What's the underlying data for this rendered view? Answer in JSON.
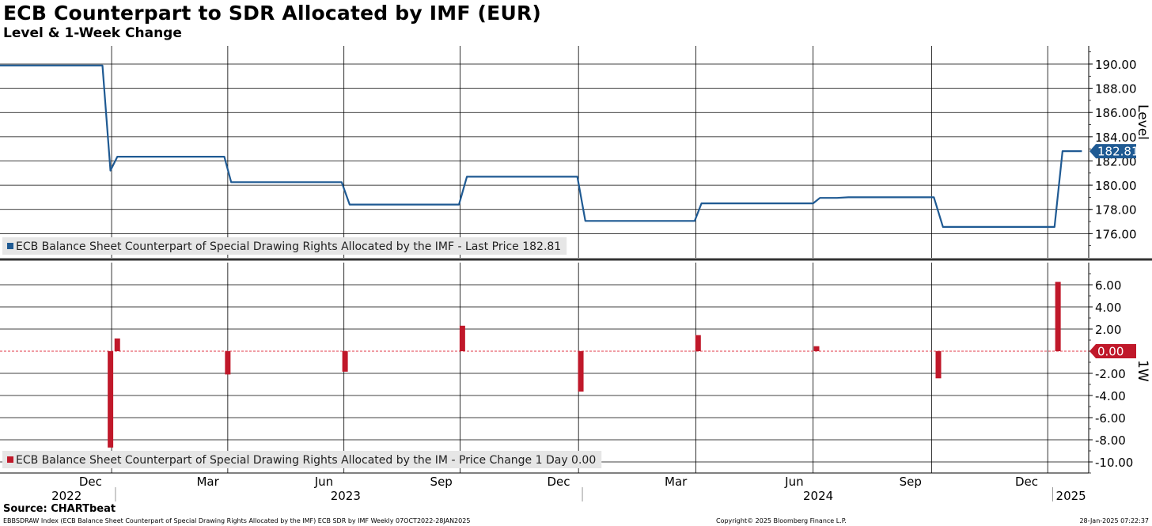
{
  "chart_data": {
    "type": "line",
    "title": "ECB Counterpart to SDR Allocated by IMF (EUR)",
    "subtitle": "Level & 1-Week Change",
    "upper_panel": {
      "type": "line",
      "axis_label": "Level",
      "ylim": [
        174.0,
        191.5
      ],
      "y_ticks": [
        "190.00",
        "188.00",
        "186.00",
        "184.00",
        "182.00",
        "180.00",
        "178.00",
        "176.00"
      ],
      "y_tick_values": [
        190,
        188,
        186,
        184,
        182,
        180,
        178,
        176
      ],
      "legend": "ECB Balance Sheet Counterpart of Special Drawing Rights Allocated by the IMF - Last Price 182.81",
      "last_value_label": "182.81",
      "last_value": 182.81,
      "color": "#1f5a93",
      "series_name": "ECB Balance Sheet Counterpart of Special Drawing Rights Allocated by the IMF",
      "points": [
        {
          "t": 0.0,
          "v": 189.88
        },
        {
          "t": 9.0,
          "v": 189.88
        },
        {
          "t": 9.7,
          "v": 181.2
        },
        {
          "t": 10.3,
          "v": 182.35
        },
        {
          "t": 19.7,
          "v": 182.35
        },
        {
          "t": 20.3,
          "v": 180.25
        },
        {
          "t": 30.0,
          "v": 180.25
        },
        {
          "t": 30.7,
          "v": 178.4
        },
        {
          "t": 40.3,
          "v": 178.4
        },
        {
          "t": 41.0,
          "v": 180.7
        },
        {
          "t": 50.7,
          "v": 180.7
        },
        {
          "t": 51.4,
          "v": 177.05
        },
        {
          "t": 61.0,
          "v": 177.05
        },
        {
          "t": 61.6,
          "v": 178.5
        },
        {
          "t": 71.4,
          "v": 178.5
        },
        {
          "t": 72.0,
          "v": 178.95
        },
        {
          "t": 73.5,
          "v": 178.95
        },
        {
          "t": 74.5,
          "v": 179.0
        },
        {
          "t": 82.0,
          "v": 179.0
        },
        {
          "t": 82.8,
          "v": 176.55
        },
        {
          "t": 92.6,
          "v": 176.55
        },
        {
          "t": 93.3,
          "v": 182.81
        },
        {
          "t": 95.0,
          "v": 182.81
        }
      ]
    },
    "lower_panel": {
      "type": "bar",
      "axis_label": "1W",
      "ylim": [
        -11.0,
        8.0
      ],
      "y_ticks": [
        "6.00",
        "4.00",
        "2.00",
        "0.00",
        "-2.00",
        "-4.00",
        "-6.00",
        "-8.00",
        "-10.00"
      ],
      "y_tick_values": [
        6,
        4,
        2,
        0,
        -2,
        -4,
        -6,
        -8,
        -10
      ],
      "legend": "ECB Balance Sheet Counterpart of Special Drawing Rights Allocated by the IM - Price Change 1 Day 0.00",
      "last_value_label": "0.00",
      "last_value": 0.0,
      "color": "#c0182a",
      "series_name": "ECB Balance Sheet Counterpart of Special Drawing Rights Allocated by the IM - Price Change 1 Day",
      "bars": [
        {
          "t": 9.7,
          "v": -8.7
        },
        {
          "t": 10.3,
          "v": 1.15
        },
        {
          "t": 20.0,
          "v": -2.1
        },
        {
          "t": 30.3,
          "v": -1.85
        },
        {
          "t": 40.6,
          "v": 2.3
        },
        {
          "t": 51.0,
          "v": -3.65
        },
        {
          "t": 61.3,
          "v": 1.45
        },
        {
          "t": 71.7,
          "v": 0.45
        },
        {
          "t": 82.4,
          "v": -2.45
        },
        {
          "t": 92.9,
          "v": 6.26
        }
      ]
    },
    "x_axis": {
      "unit": "weeks since 07 Oct 2022",
      "month_ticks": [
        {
          "label": "Dec",
          "t": 7.6
        },
        {
          "label": "Mar",
          "t": 17.9
        },
        {
          "label": "Jun",
          "t": 28.1
        },
        {
          "label": "Sep",
          "t": 38.4
        },
        {
          "label": "Dec",
          "t": 48.7
        },
        {
          "label": "Mar",
          "t": 59.0
        },
        {
          "label": "Jun",
          "t": 69.4
        },
        {
          "label": "Sep",
          "t": 79.6
        },
        {
          "label": "Dec",
          "t": 89.8
        }
      ],
      "gridlines_t": [
        9.8,
        20.0,
        30.2,
        40.4,
        50.8,
        61.1,
        71.4,
        81.8,
        92.0
      ],
      "year_labels": [
        {
          "label": "2022",
          "t": 5.5
        },
        {
          "label": "2023",
          "t": 30.0
        },
        {
          "label": "2024",
          "t": 71.5
        },
        {
          "label": "2025",
          "t": 93.7
        }
      ],
      "year_separators_t": [
        10.0,
        51.0,
        92.3
      ]
    }
  },
  "source": "Source: CHARTbeat",
  "footer_left": "EBBSDRAW Index (ECB Balance Sheet Counterpart of Special Drawing Rights Allocated by the IMF) ECB SDR by IMF  Weekly 07OCT2022-28JAN2025",
  "footer_mid": "Copyright© 2025 Bloomberg Finance L.P.",
  "footer_right": "28-Jan-2025 07:22:37"
}
